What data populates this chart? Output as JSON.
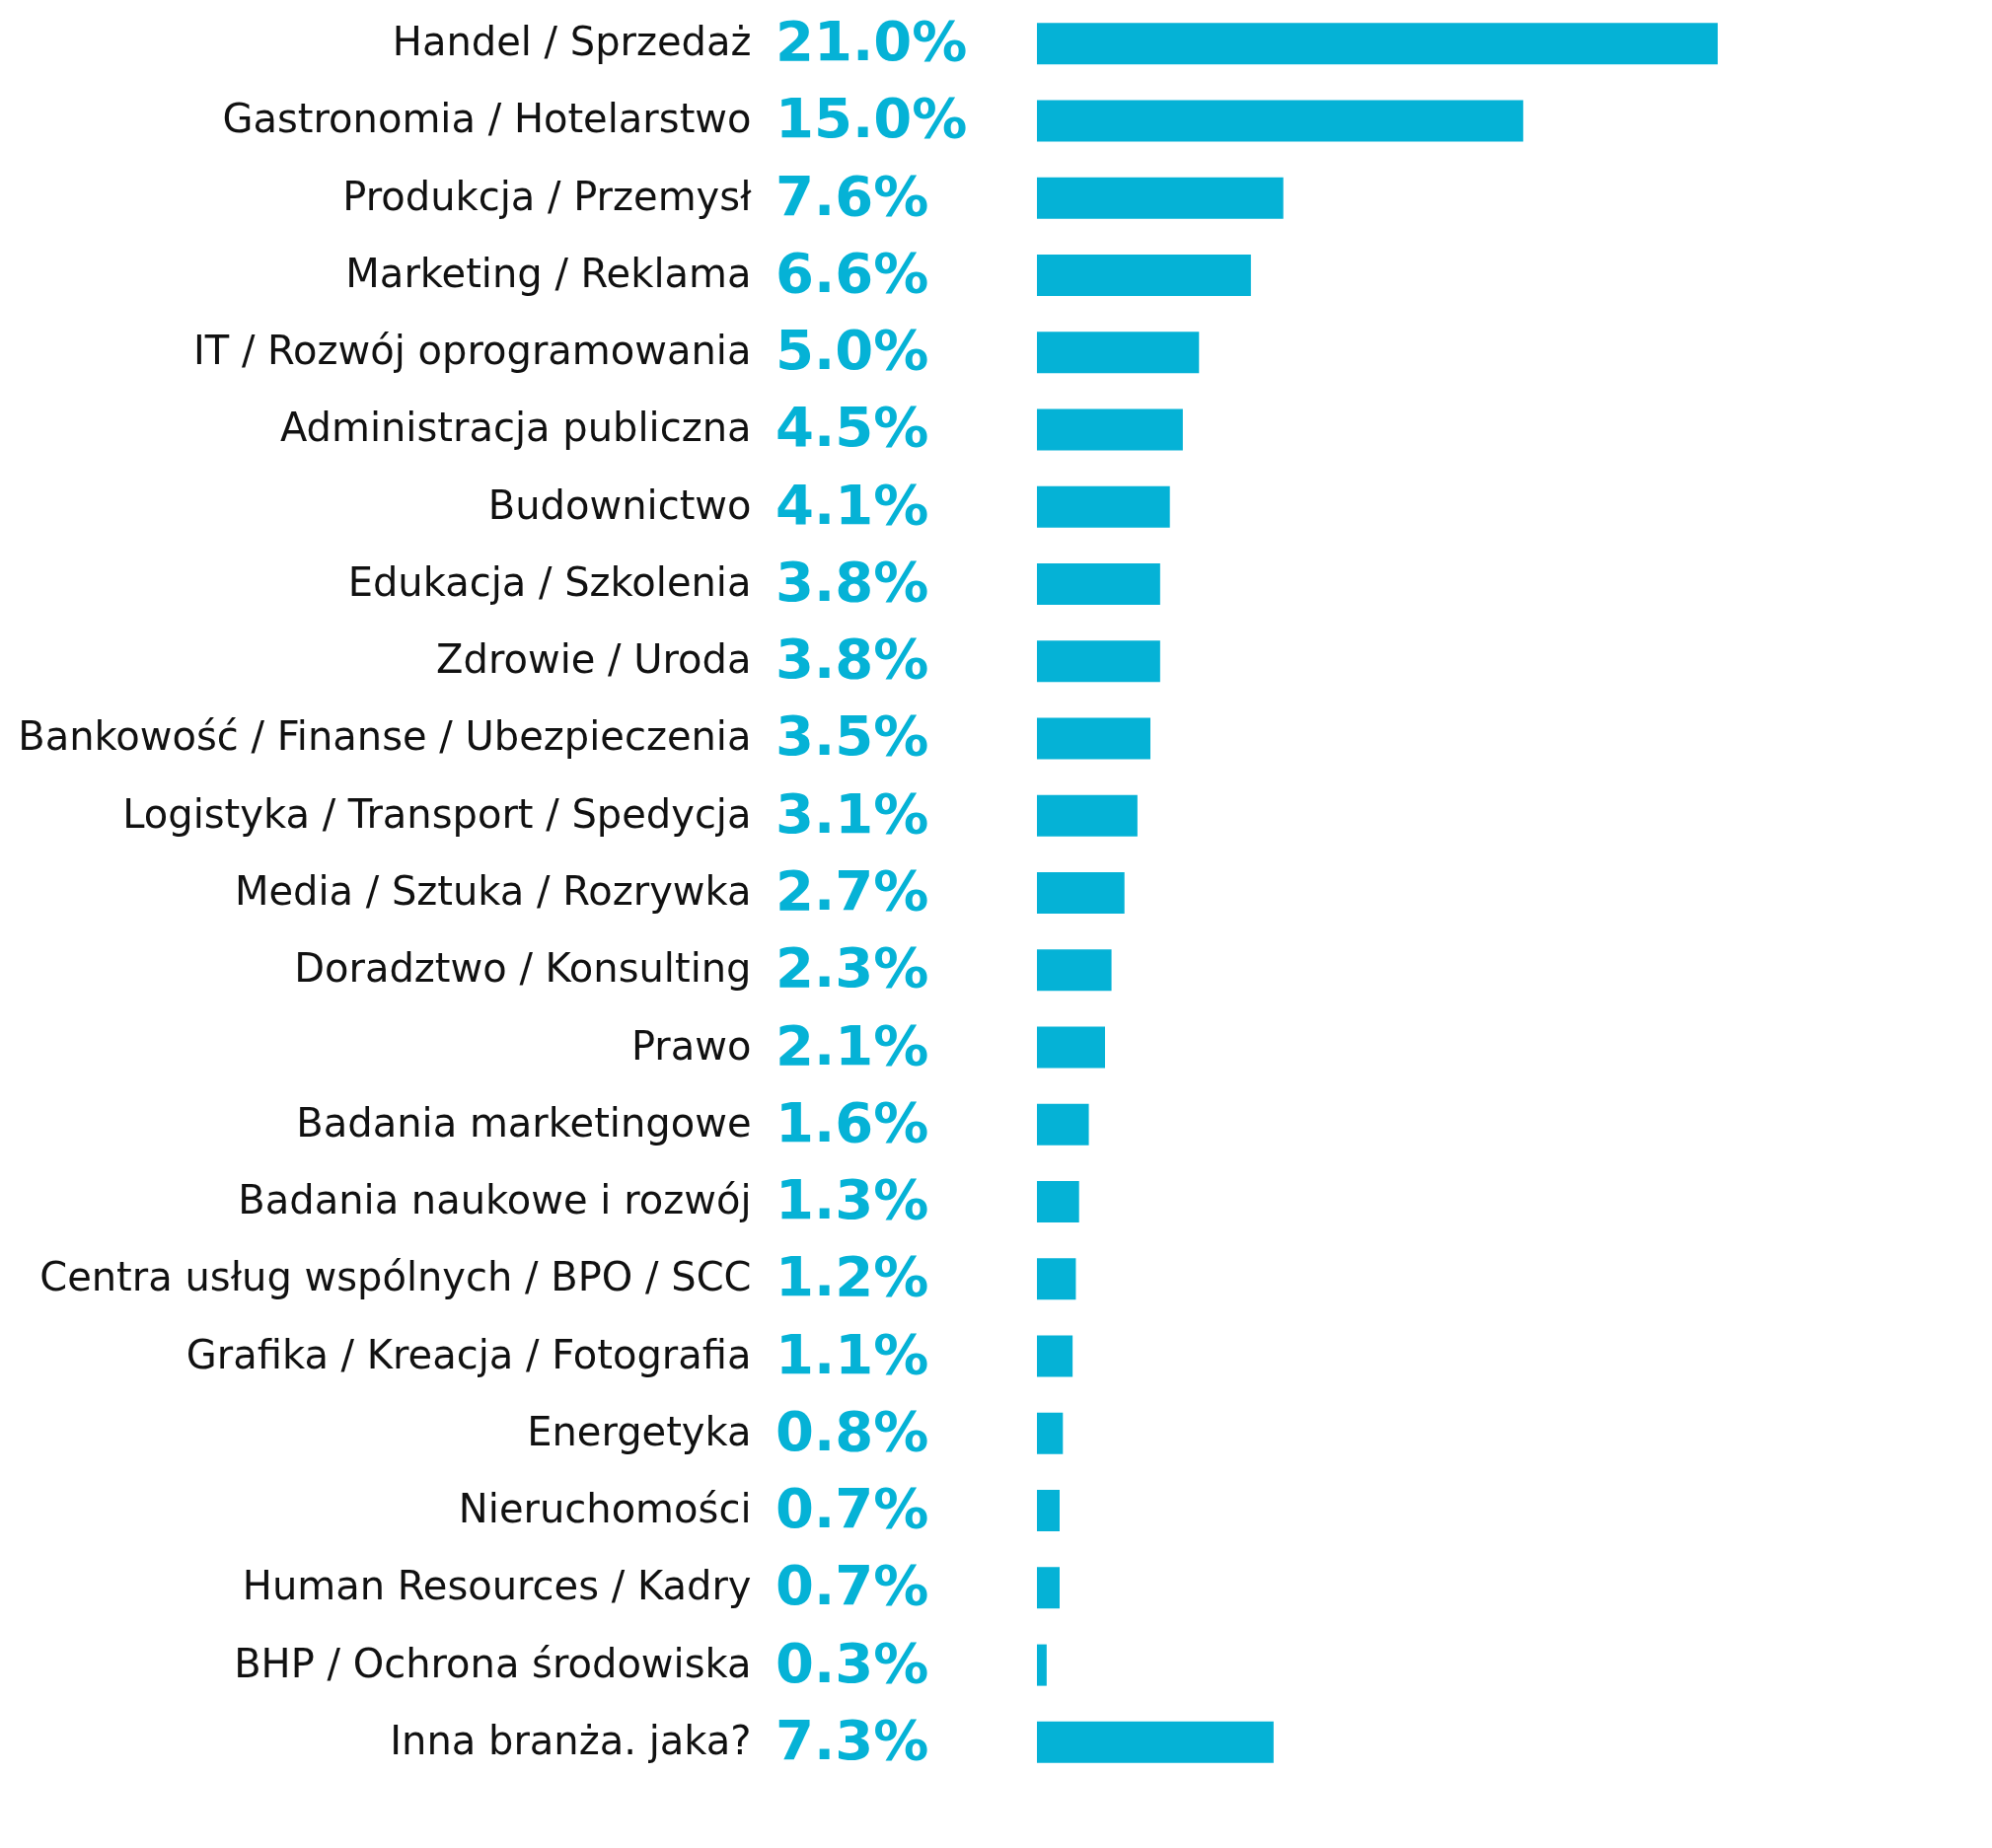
{
  "chart_data": {
    "type": "bar",
    "orientation": "horizontal",
    "color": "#05b2d6",
    "grid": false,
    "categories": [
      "Handel / Sprzedaż",
      "Gastronomia / Hotelarstwo",
      "Produkcja / Przemysł",
      "Marketing / Reklama",
      "IT / Rozwój oprogramowania",
      "Administracja publiczna",
      "Budownictwo",
      "Edukacja / Szkolenia",
      "Zdrowie / Uroda",
      "Bankowość  / Finanse / Ubezpieczenia",
      "Logistyka / Transport / Spedycja",
      "Media / Sztuka / Rozrywka",
      "Doradztwo / Konsulting",
      "Prawo",
      "Badania marketingowe",
      "Badania naukowe i rozwój",
      "Centra usług wspólnych / BPO / SCC",
      "Grafika / Kreacja / Fotografia",
      "Energetyka",
      "Nieruchomości",
      "Human Resources / Kadry",
      "BHP / Ochrona środowiska",
      "Inna branża. jaka?"
    ],
    "values": [
      21.0,
      15.0,
      7.6,
      6.6,
      5.0,
      4.5,
      4.1,
      3.8,
      3.8,
      3.5,
      3.1,
      2.7,
      2.3,
      2.1,
      1.6,
      1.3,
      1.2,
      1.1,
      0.8,
      0.7,
      0.7,
      0.3,
      7.3
    ],
    "value_labels": [
      "21.0%",
      "15.0%",
      "7.6%",
      "6.6%",
      "5.0%",
      "4.5%",
      "4.1%",
      "3.8%",
      "3.8%",
      "3.5%",
      "3.1%",
      "2.7%",
      "2.3%",
      "2.1%",
      "1.6%",
      "1.3%",
      "1.2%",
      "1.1%",
      "0.8%",
      "0.7%",
      "0.7%",
      "0.3%",
      "7.3%"
    ]
  }
}
